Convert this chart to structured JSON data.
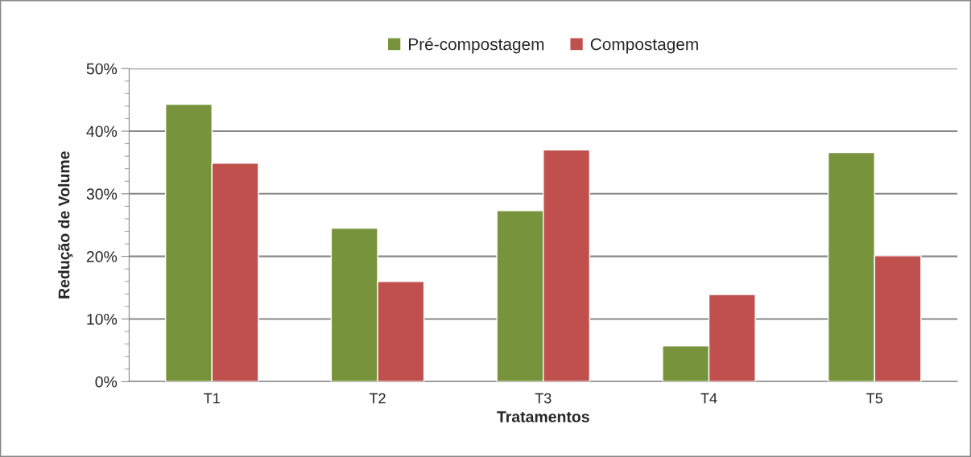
{
  "chart_data": {
    "type": "bar",
    "xlabel": "Tratamentos",
    "ylabel": "Redução de Volume",
    "categories": [
      "T1",
      "T2",
      "T3",
      "T4",
      "T5"
    ],
    "series": [
      {
        "name": "Pré-compostagem",
        "color": "#77933c",
        "values": [
          44.3,
          24.5,
          27.3,
          5.7,
          36.6
        ]
      },
      {
        "name": "Compostagem",
        "color": "#c0504d",
        "values": [
          34.9,
          16.0,
          37.0,
          13.9,
          20.1
        ]
      }
    ],
    "ylim": [
      0,
      50
    ],
    "yticks": [
      {
        "value": 0,
        "label": "0%"
      },
      {
        "value": 10,
        "label": "10%"
      },
      {
        "value": 20,
        "label": "20%"
      },
      {
        "value": 30,
        "label": "30%"
      },
      {
        "value": 40,
        "label": "40%"
      },
      {
        "value": 50,
        "label": "50%"
      }
    ],
    "grid": "y",
    "legend": "top"
  }
}
